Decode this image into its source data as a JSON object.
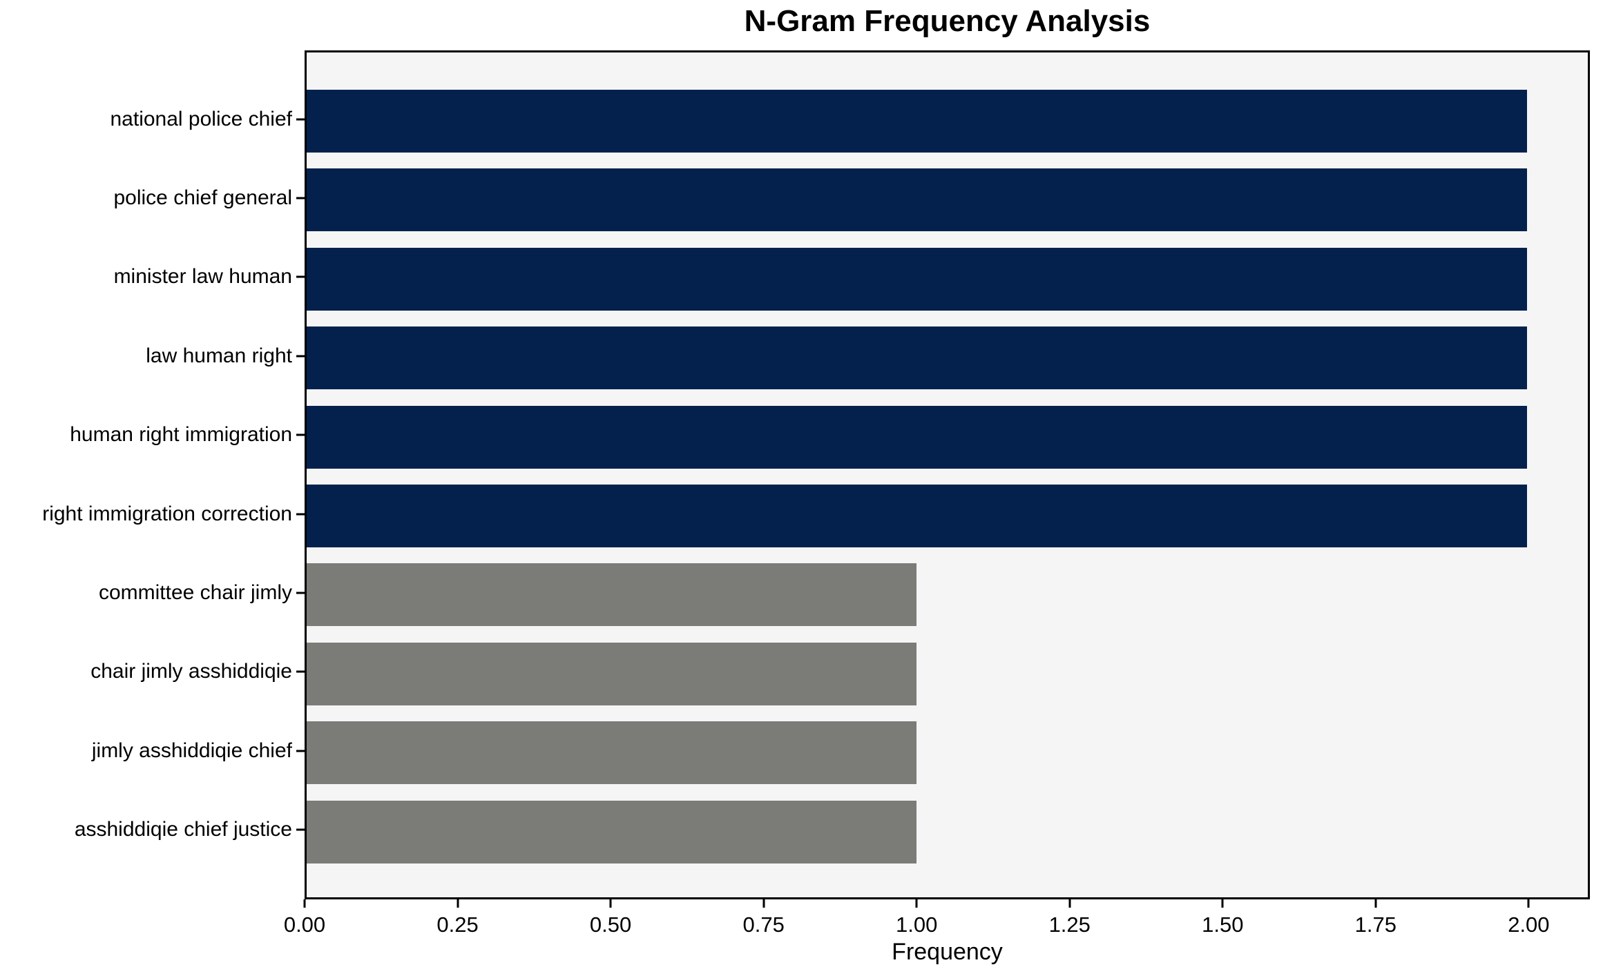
{
  "chart_data": {
    "type": "bar",
    "orientation": "horizontal",
    "title": "N-Gram Frequency Analysis",
    "xlabel": "Frequency",
    "ylabel": "",
    "categories": [
      "national police chief",
      "police chief general",
      "minister law human",
      "law human right",
      "human right immigration",
      "right immigration correction",
      "committee chair jimly",
      "chair jimly asshiddiqie",
      "jimly asshiddiqie chief",
      "asshiddiqie chief justice"
    ],
    "values": [
      2,
      2,
      2,
      2,
      2,
      2,
      1,
      1,
      1,
      1
    ],
    "bar_colors": [
      "#03214c",
      "#03214c",
      "#03214c",
      "#03214c",
      "#03214c",
      "#03214c",
      "#7b7b78",
      "#7b7b78",
      "#7b7b78",
      "#7b7b78"
    ],
    "xlim": [
      0,
      2.1
    ],
    "x_ticks": [
      "0.00",
      "0.25",
      "0.50",
      "0.75",
      "1.00",
      "1.25",
      "1.50",
      "1.75",
      "2.00"
    ],
    "x_tick_values": [
      0,
      0.25,
      0.5,
      0.75,
      1.0,
      1.25,
      1.5,
      1.75,
      2.0
    ],
    "grid": false,
    "legend": null,
    "plot_bg": "#f5f5f5",
    "figure_bg": "#ffffff",
    "accent_color": "#03214c",
    "muted_color": "#7b7b78"
  }
}
